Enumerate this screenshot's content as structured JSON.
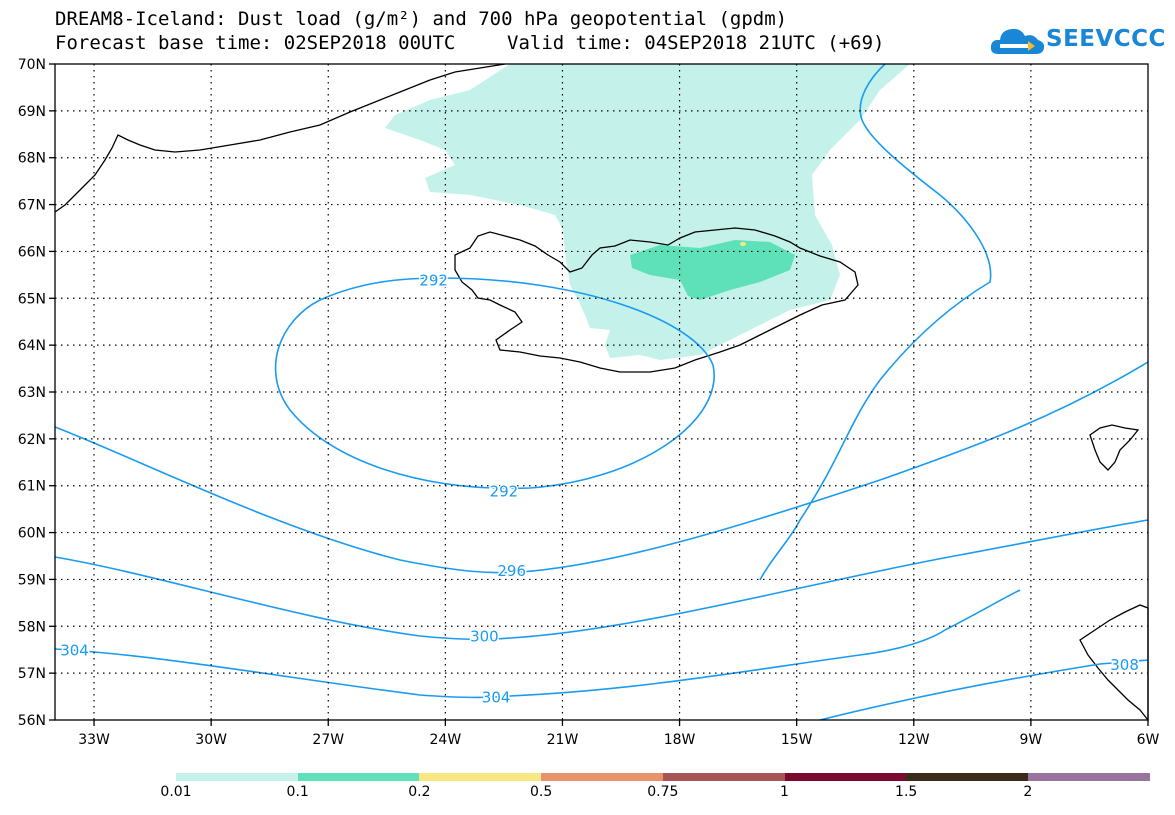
{
  "header": {
    "title": "DREAM8-Iceland: Dust load (g/m²) and 700 hPa geopotential (gpdm)",
    "base_time": "Forecast base time: 02SEP2018 00UTC",
    "valid_time": "Valid time: 04SEP2018 21UTC (+69)",
    "logo_text": "SEEVCCC"
  },
  "map": {
    "lon_range": [
      -34,
      -6
    ],
    "lat_range": [
      56,
      70
    ],
    "lon_ticks": [
      "33W",
      "30W",
      "27W",
      "24W",
      "21W",
      "18W",
      "15W",
      "12W",
      "9W",
      "6W"
    ],
    "lat_ticks": [
      "56N",
      "57N",
      "58N",
      "59N",
      "60N",
      "61N",
      "62N",
      "63N",
      "64N",
      "65N",
      "66N",
      "67N",
      "68N",
      "69N",
      "70N"
    ],
    "grid": true,
    "contour_color": "#1a9bf0",
    "contour_labels": [
      {
        "text": "292",
        "lon": -24.3,
        "lat": 65.4
      },
      {
        "text": "292",
        "lon": -22.5,
        "lat": 60.9
      },
      {
        "text": "296",
        "lon": -22.3,
        "lat": 59.2
      },
      {
        "text": "300",
        "lon": -23.0,
        "lat": 57.8
      },
      {
        "text": "304",
        "lon": -33.5,
        "lat": 57.5
      },
      {
        "text": "304",
        "lon": -22.7,
        "lat": 56.5
      },
      {
        "text": "308",
        "lon": -6.6,
        "lat": 57.2
      }
    ]
  },
  "legend": {
    "colors": [
      "#c4f2ea",
      "#5ee0b8",
      "#f7e884",
      "#e8916b",
      "#a85555",
      "#7a0a2e",
      "#3a2a17",
      "#98739e"
    ],
    "labels": [
      "0.01",
      "0.1",
      "0.2",
      "0.5",
      "0.75",
      "1",
      "1.5",
      "2"
    ]
  }
}
